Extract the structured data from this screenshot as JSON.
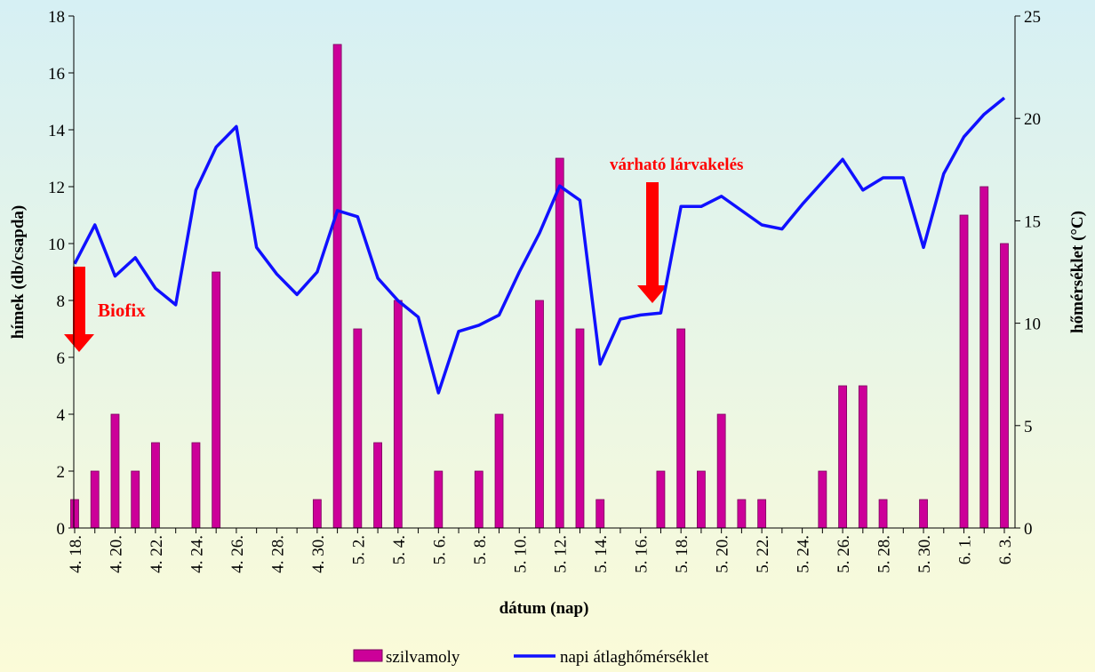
{
  "chart_data": {
    "type": "bar",
    "categories": [
      "4. 18.",
      null,
      "4. 20.",
      null,
      "4. 22.",
      null,
      "4. 24.",
      null,
      "4. 26.",
      null,
      "4. 28.",
      null,
      "4. 30.",
      null,
      "5. 2.",
      null,
      "5. 4.",
      null,
      "5. 6.",
      null,
      "5. 8.",
      null,
      "5. 10.",
      null,
      "5. 12.",
      null,
      "5. 14.",
      null,
      "5. 16.",
      null,
      "5. 18.",
      null,
      "5. 20.",
      null,
      "5. 22.",
      null,
      "5. 24.",
      null,
      "5. 26.",
      null,
      "5. 28.",
      null,
      "5. 30.",
      null,
      "6. 1.",
      null,
      "6. 3."
    ],
    "series": [
      {
        "name": "szilvamoly",
        "type": "bar",
        "color": "#cc0099",
        "values": [
          1,
          2,
          4,
          2,
          3,
          0,
          3,
          9,
          0,
          0,
          0,
          0,
          1,
          17,
          7,
          3,
          8,
          0,
          2,
          0,
          2,
          4,
          0,
          8,
          13,
          7,
          1,
          0,
          0,
          2,
          7,
          2,
          4,
          1,
          1,
          0,
          0,
          2,
          5,
          5,
          1,
          0,
          1,
          0,
          11,
          12,
          10
        ]
      },
      {
        "name": "napi átlaghőmérséklet",
        "type": "line",
        "axis": "y2",
        "color": "#1010ff",
        "values": [
          12.9,
          14.8,
          12.3,
          13.2,
          11.7,
          10.9,
          16.5,
          18.6,
          19.6,
          13.7,
          12.4,
          11.4,
          12.5,
          15.5,
          15.2,
          12.2,
          11.1,
          10.3,
          6.6,
          9.6,
          9.9,
          10.4,
          12.5,
          14.4,
          16.7,
          16.0,
          8.0,
          10.2,
          10.4,
          10.5,
          15.7,
          15.7,
          16.2,
          15.5,
          14.8,
          14.6,
          15.8,
          16.9,
          18.0,
          16.5,
          17.1,
          17.1,
          13.7,
          17.3,
          19.1,
          20.2,
          21.0
        ]
      }
    ],
    "ylabel": "hímek  (db/csapda)",
    "y2label": "hőmérséklet (°C)",
    "xlabel": "dátum (nap)",
    "ylim": [
      0,
      18
    ],
    "yticks": [
      0,
      2,
      4,
      6,
      8,
      10,
      12,
      14,
      16,
      18
    ],
    "y2lim": [
      0,
      25
    ],
    "y2ticks": [
      0,
      5,
      10,
      15,
      20,
      25
    ],
    "annotations": [
      "Biofix",
      "várható lárvakelés"
    ]
  }
}
